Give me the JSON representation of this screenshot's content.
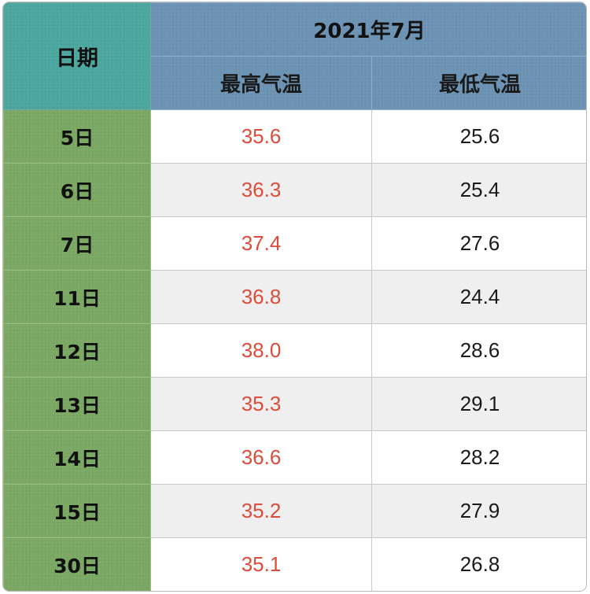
{
  "chart_data": {
    "type": "table",
    "header": {
      "date_label": "日期",
      "month_label": "2021年7月",
      "high_label": "最高气温",
      "low_label": "最低气温"
    },
    "colors": {
      "date_header": "#4ba79f",
      "month_header": "#6c93b3",
      "date_column": "#7aa863",
      "high_text": "#dd4c3a",
      "low_text": "#1a1a1a",
      "alt_row": "#efefef"
    },
    "rows": [
      {
        "date": "5日",
        "high": "35.6",
        "low": "25.6"
      },
      {
        "date": "6日",
        "high": "36.3",
        "low": "25.4"
      },
      {
        "date": "7日",
        "high": "37.4",
        "low": "27.6"
      },
      {
        "date": "11日",
        "high": "36.8",
        "low": "24.4"
      },
      {
        "date": "12日",
        "high": "38.0",
        "low": "28.6"
      },
      {
        "date": "13日",
        "high": "35.3",
        "low": "29.1"
      },
      {
        "date": "14日",
        "high": "36.6",
        "low": "28.2"
      },
      {
        "date": "15日",
        "high": "35.2",
        "low": "27.9"
      },
      {
        "date": "30日",
        "high": "35.1",
        "low": "26.8"
      }
    ]
  }
}
